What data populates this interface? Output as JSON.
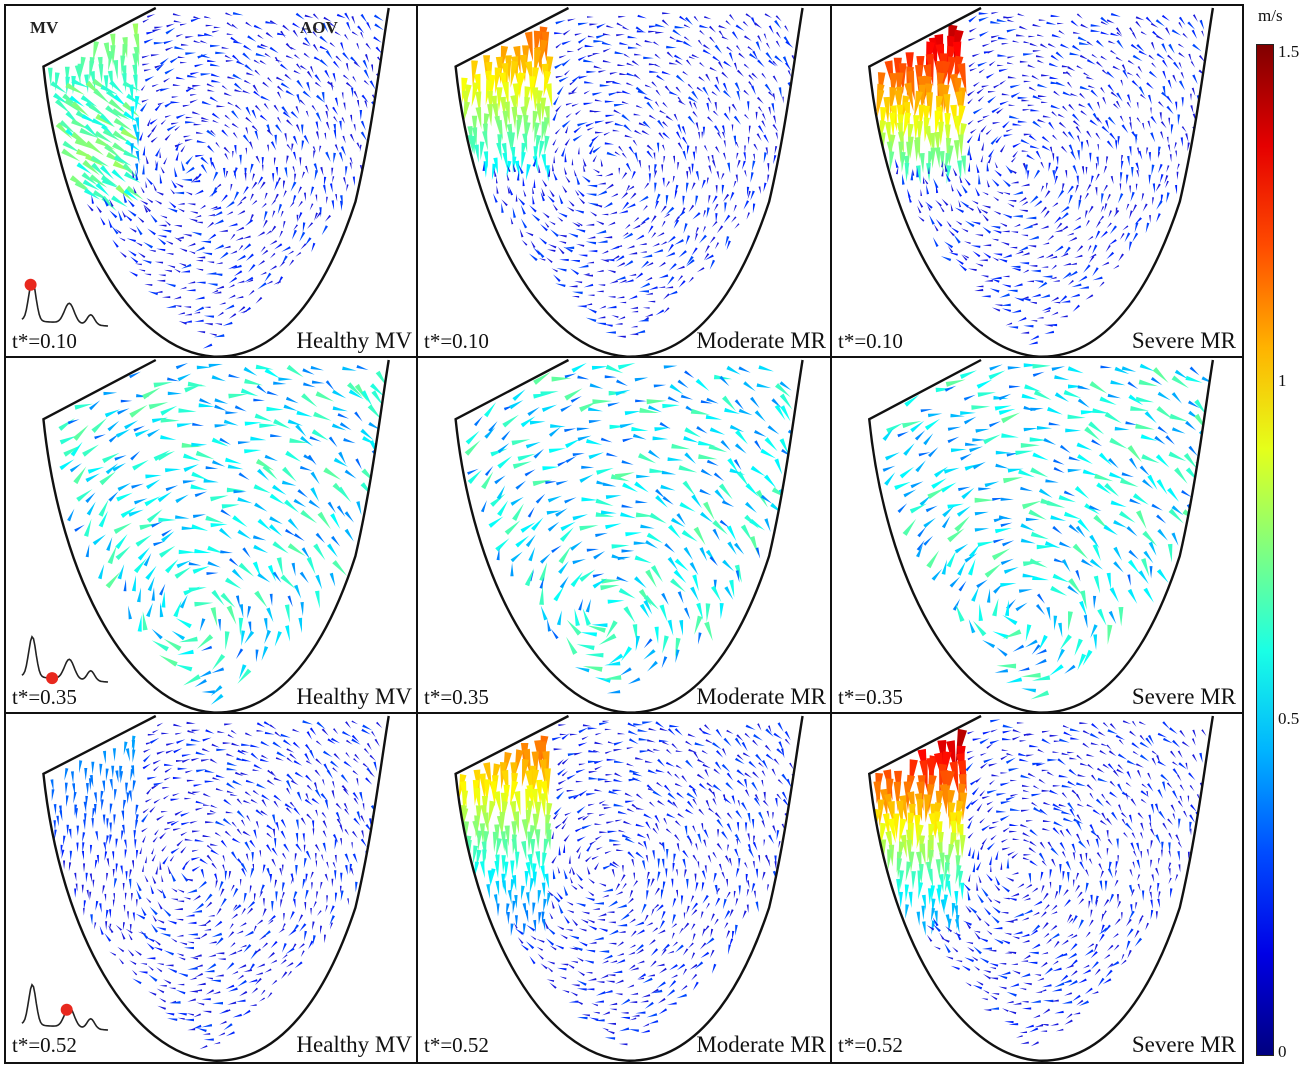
{
  "valve_labels": {
    "mv": "MV",
    "aov": "AOV"
  },
  "rows": [
    {
      "time": "t*=0.10",
      "phase": 0.1
    },
    {
      "time": "t*=0.35",
      "phase": 0.35
    },
    {
      "time": "t*=0.52",
      "phase": 0.52
    }
  ],
  "columns": [
    {
      "case": "Healthy MV",
      "jet_peak": 0.85
    },
    {
      "case": "Moderate MR",
      "jet_peak": 1.25
    },
    {
      "case": "Severe MR",
      "jet_peak": 1.5
    }
  ],
  "colorbar": {
    "unit": "m/s",
    "ticks": [
      "1.5",
      "1",
      "0.5",
      "0"
    ],
    "tick_values": [
      1.5,
      1.0,
      0.5,
      0
    ],
    "range": [
      0,
      1.5
    ],
    "colormap": "jet"
  },
  "marker_color": "#e8281e",
  "vector_color_low": "#1a1adc"
}
